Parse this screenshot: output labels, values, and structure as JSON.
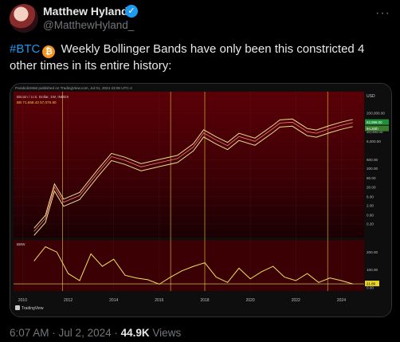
{
  "author": {
    "name": "Matthew Hyland",
    "handle": "@MatthewHyland_"
  },
  "tweet": {
    "hashtag": "#BTC",
    "text": " Weekly Bollinger Bands have only been this constricted 4 other times in its entire history:"
  },
  "chart_header": {
    "publisher": "ParabolicMatt published on TradingView.com, Jul 01, 2024 23:06 UTC-4",
    "symbol": "Bitcoin / U.S. Dollar, 1W, INDEX",
    "values": "BB 71,658.43 57,075.80",
    "currency": "USD",
    "osc_label": "BBW",
    "tradingview": "TradingView"
  },
  "chart_data": [
    {
      "type": "line",
      "scale": "log",
      "y_ticks": [
        "200,000.00",
        "20,000.00",
        "6,000.00",
        "600.00",
        "200.00",
        "60.00",
        "20.00",
        "6.00",
        "2.00",
        "0.60",
        "0.20"
      ],
      "price_badges": [
        "62,998.00",
        "94.20th"
      ],
      "x_ticks": [
        "2010",
        "2012",
        "2014",
        "2016",
        "2018",
        "2020",
        "2022",
        "2024"
      ],
      "series": [
        {
          "x": [
            2010.5,
            2011.0,
            2011.4,
            2011.8,
            2012.5,
            2013.3,
            2013.9,
            2014.5,
            2015.2,
            2016.0,
            2016.8,
            2017.5,
            2017.95,
            2018.5,
            2019.0,
            2019.5,
            2020.2,
            2021.0,
            2021.3,
            2021.85,
            2022.5,
            2022.9,
            2023.5,
            2024.0,
            2024.5
          ],
          "values": [
            0.08,
            0.4,
            20,
            3,
            7,
            120,
            900,
            550,
            250,
            420,
            700,
            3000,
            17000,
            7000,
            3500,
            11000,
            6000,
            30000,
            58000,
            65000,
            20000,
            16500,
            29000,
            44000,
            62000
          ]
        }
      ]
    },
    {
      "type": "line",
      "y_ticks": [
        "200.00",
        "100.00",
        "0.00"
      ],
      "price_badges": [
        "21.89"
      ],
      "x_ticks": [
        "2010",
        "2012",
        "2014",
        "2016",
        "2018",
        "2020",
        "2022",
        "2024"
      ],
      "series": [
        {
          "x": [
            2010.5,
            2011.0,
            2011.5,
            2012.0,
            2012.5,
            2013.0,
            2013.5,
            2014.0,
            2014.5,
            2015.0,
            2015.5,
            2016.0,
            2016.5,
            2017.0,
            2017.5,
            2018.0,
            2018.5,
            2019.0,
            2019.5,
            2020.0,
            2020.5,
            2021.0,
            2021.5,
            2022.0,
            2022.5,
            2023.0,
            2023.5,
            2024.0,
            2024.5
          ],
          "values": [
            150,
            230,
            200,
            80,
            40,
            190,
            120,
            160,
            70,
            55,
            45,
            20,
            60,
            95,
            120,
            140,
            60,
            30,
            110,
            50,
            90,
            120,
            60,
            40,
            80,
            30,
            55,
            40,
            22
          ]
        }
      ]
    }
  ],
  "footer": {
    "time": "6:07 AM",
    "date": "Jul 2, 2024",
    "views": "44.9K",
    "views_label": "Views"
  }
}
